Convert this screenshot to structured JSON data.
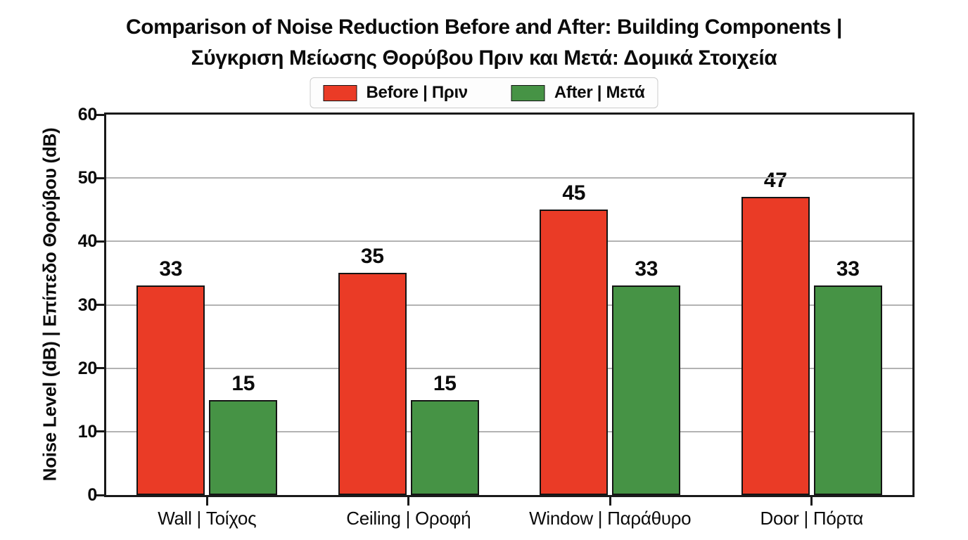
{
  "chart_data": {
    "type": "bar",
    "title": "Comparison of Noise Reduction Before and After: Building Components |\nΣύγκριση Μείωσης Θορύβου Πριν και Μετά: Δομικά Στοιχεία",
    "categories": [
      "Wall | Τοίχος",
      "Ceiling | Οροφή",
      "Window | Παράθυρο",
      "Door | Πόρτα"
    ],
    "series": [
      {
        "name": "Before | Πριν",
        "values": [
          33,
          35,
          45,
          47
        ],
        "color": "#EA3B26"
      },
      {
        "name": "After | Μετά",
        "values": [
          15,
          15,
          33,
          33
        ],
        "color": "#469345"
      }
    ],
    "xlabel": "",
    "ylabel": "Noise Level (dB) | Επίπεδο Θορύβου (dB)",
    "ylim": [
      0,
      60
    ],
    "yticks": [
      0,
      10,
      20,
      30,
      40,
      50,
      60
    ],
    "grid": true,
    "value_labels": true,
    "legend_position": "top-center",
    "colors": {
      "bar_edge": "#141414",
      "grid_line": "#b3b3b3",
      "axis_spine": "#1a1a1a",
      "text": "#0b0b0b",
      "background": "#ffffff"
    }
  }
}
